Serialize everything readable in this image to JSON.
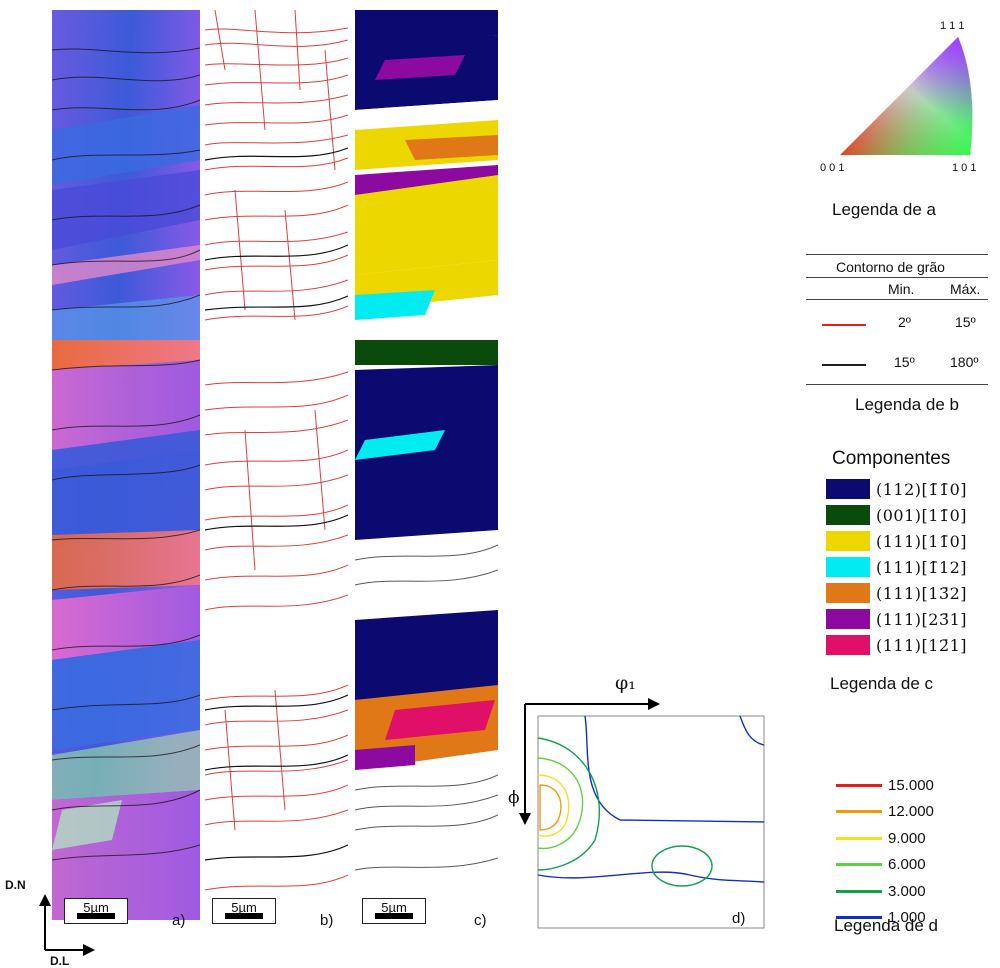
{
  "panels": [
    {
      "id": "a",
      "label": "a)",
      "scale": "5µm"
    },
    {
      "id": "b",
      "label": "b)",
      "scale": "5µm"
    },
    {
      "id": "c",
      "label": "c)",
      "scale": "5µm"
    },
    {
      "id": "d",
      "label": "d)"
    }
  ],
  "axes": {
    "dn": "D.N",
    "dl": "D.L",
    "phi1": "φ₁",
    "phi": "ϕ"
  },
  "legend_a": {
    "corner_111": "1 1 1",
    "corner_001": "0 0 1",
    "corner_101": "1 0 1",
    "title": "Legenda de a"
  },
  "legend_b": {
    "header": "Contorno de grão",
    "col_min": "Min.",
    "col_max": "Máx.",
    "rows": [
      {
        "color": "#e02020",
        "min": "2º",
        "max": "15º"
      },
      {
        "color": "#202020",
        "min": "15º",
        "max": "180º"
      }
    ],
    "title": "Legenda de b"
  },
  "legend_c": {
    "header": "Componentes",
    "items": [
      {
        "color": "#0a0a70",
        "label": "(112)[1̄1̄0]"
      },
      {
        "color": "#0a4a0a",
        "label": "(001)[11̄0]"
      },
      {
        "color": "#ecd800",
        "label": "(111)[11̄0]"
      },
      {
        "color": "#00ecf0",
        "label": "(111)[1̄12]"
      },
      {
        "color": "#e07818",
        "label": "(111)[13̄2]"
      },
      {
        "color": "#8c0aa0",
        "label": "(111)[23̄1]"
      },
      {
        "color": "#e01068",
        "label": "(111)[12̄1]"
      }
    ],
    "title": "Legenda de c"
  },
  "legend_d": {
    "items": [
      {
        "color": "#e02020",
        "label": "15.000"
      },
      {
        "color": "#f09a10",
        "label": "12.000"
      },
      {
        "color": "#f0e020",
        "label": "9.000"
      },
      {
        "color": "#60d040",
        "label": "6.000"
      },
      {
        "color": "#10a050",
        "label": "3.000"
      },
      {
        "color": "#1030c0",
        "label": "1.000"
      }
    ],
    "title": "Legenda de d"
  }
}
